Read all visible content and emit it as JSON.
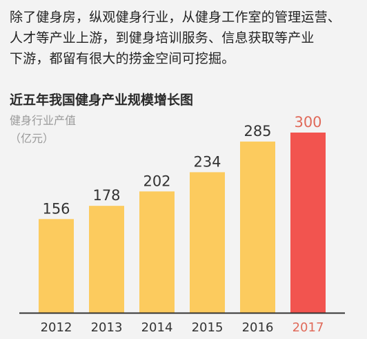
{
  "intro": {
    "lines": [
      "除了健身房，纵观健身行业，从健身工作室的管理运营、",
      "人才等产业上游，到健身培训服务、信息获取等产业",
      "下游，都留有很大的捞金空间可挖掘。"
    ]
  },
  "chart_data": {
    "type": "bar",
    "title": "近五年我国健身产业规模增长图",
    "ylabel_line1": "健身行业产值",
    "ylabel_line2": "（亿元）",
    "categories": [
      "2012",
      "2013",
      "2014",
      "2015",
      "2016",
      "2017"
    ],
    "values": [
      156,
      178,
      202,
      234,
      285,
      300
    ],
    "highlight_index": 5,
    "ylim": [
      0,
      300
    ],
    "grid": false,
    "colors": {
      "bar": "#fccb5e",
      "highlight": "#f2544f",
      "label": "#333333",
      "highlight_label": "#e06a5a",
      "axis": "#333333"
    }
  }
}
